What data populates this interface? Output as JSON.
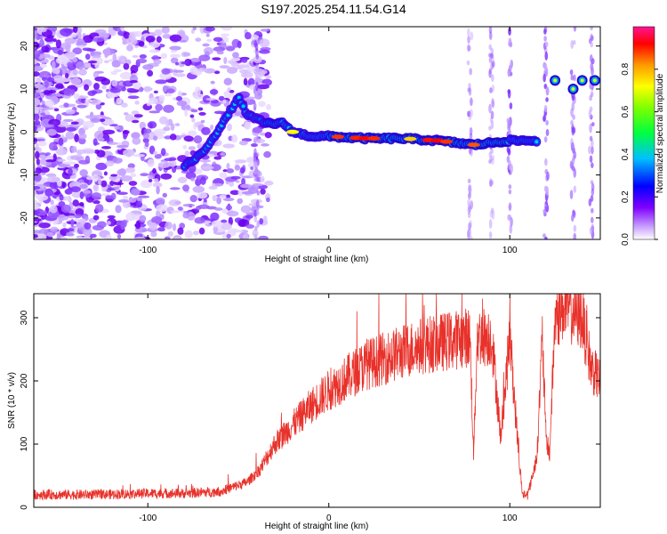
{
  "title": "S197.2025.254.11.54.G14",
  "chart_data": [
    {
      "type": "heatmap",
      "title": "S197.2025.254.11.54.G14",
      "xlabel": "Height of straight line (km)",
      "ylabel": "Frequency (Hz)",
      "xlim": [
        -163,
        150
      ],
      "ylim": [
        -25,
        24.5
      ],
      "xticks": [
        -100,
        0,
        100
      ],
      "yticks": [
        -20,
        -10,
        0,
        10,
        20
      ],
      "colorbar": {
        "label": "Normalized spectral amplitude",
        "range": [
          0.0,
          1.0
        ],
        "ticks": [
          0.0,
          0.2,
          0.4,
          0.6,
          0.8
        ]
      },
      "ridge": {
        "description": "main spectral trace (frequency vs height)",
        "points": [
          [
            -80,
            -8
          ],
          [
            -70,
            -5
          ],
          [
            -60,
            1
          ],
          [
            -50,
            8
          ],
          [
            -45,
            4
          ],
          [
            -35,
            2
          ],
          [
            -25,
            2
          ],
          [
            -20,
            0
          ],
          [
            -10,
            -1
          ],
          [
            0,
            -1
          ],
          [
            20,
            -1.5
          ],
          [
            40,
            -1.5
          ],
          [
            60,
            -2
          ],
          [
            80,
            -3
          ],
          [
            100,
            -2
          ],
          [
            115,
            -2
          ]
        ],
        "high_cluster": [
          [
            125,
            12
          ],
          [
            135,
            10
          ],
          [
            140,
            12
          ],
          [
            147,
            12
          ]
        ]
      }
    },
    {
      "type": "line",
      "xlabel": "Height of straight line (km)",
      "ylabel": "SNR (10 * v/v)",
      "xlim": [
        -163,
        150
      ],
      "ylim": [
        0,
        338
      ],
      "xticks": [
        -100,
        0,
        100
      ],
      "yticks": [
        0,
        100,
        200,
        300
      ],
      "series": [
        {
          "name": "SNR",
          "color": "#e8312a",
          "x": [
            -163,
            -130,
            -100,
            -80,
            -60,
            -45,
            -38,
            -30,
            -20,
            -10,
            0,
            10,
            20,
            30,
            40,
            50,
            60,
            70,
            78,
            80,
            82,
            90,
            95,
            100,
            105,
            107,
            110,
            115,
            118,
            120,
            122,
            125,
            130,
            140,
            145,
            150
          ],
          "y": [
            20,
            20,
            22,
            22,
            25,
            40,
            60,
            100,
            130,
            160,
            185,
            205,
            225,
            235,
            245,
            255,
            260,
            265,
            270,
            85,
            270,
            270,
            110,
            270,
            80,
            20,
            20,
            80,
            270,
            110,
            85,
            300,
            320,
            300,
            220,
            200
          ]
        }
      ]
    }
  ]
}
